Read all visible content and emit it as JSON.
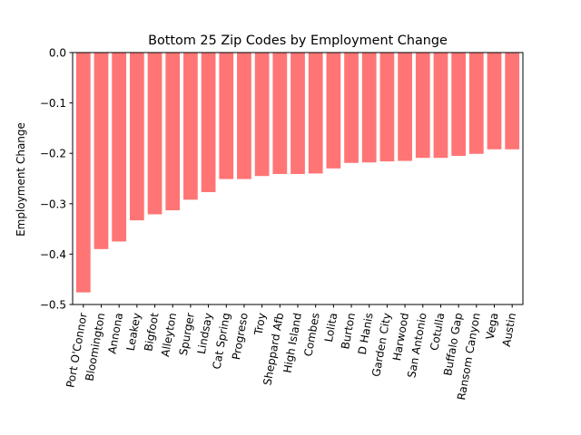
{
  "chart_data": {
    "type": "bar",
    "title": "Bottom 25 Zip Codes by Employment Change",
    "xlabel": "",
    "ylabel": "Employment Change",
    "categories": [
      "Port O'Connor",
      "Bloomington",
      "Annona",
      "Leakey",
      "Bigfoot",
      "Alleyton",
      "Spurger",
      "Lindsay",
      "Cat Spring",
      "Progreso",
      "Troy",
      "Sheppard Afb",
      "High Island",
      "Combes",
      "Lolita",
      "Burton",
      "D Hanis",
      "Garden City",
      "Harwood",
      "San Antonio",
      "Cotulla",
      "Buffalo Gap",
      "Ransom Canyon",
      "Vega",
      "Austin"
    ],
    "values": [
      -0.476,
      -0.39,
      -0.375,
      -0.333,
      -0.321,
      -0.313,
      -0.292,
      -0.277,
      -0.251,
      -0.251,
      -0.245,
      -0.241,
      -0.241,
      -0.24,
      -0.23,
      -0.219,
      -0.218,
      -0.216,
      -0.215,
      -0.209,
      -0.209,
      -0.205,
      -0.201,
      -0.192,
      -0.192
    ],
    "ylim": [
      -0.5,
      0.0
    ],
    "yticks": [
      0.0,
      -0.1,
      -0.2,
      -0.3,
      -0.4,
      -0.5
    ],
    "ytick_labels": [
      "0.0",
      "−0.1",
      "−0.2",
      "−0.3",
      "−0.4",
      "−0.5"
    ],
    "grid": false,
    "colors": {
      "bar": "#ff7575",
      "axis": "#000000"
    }
  }
}
